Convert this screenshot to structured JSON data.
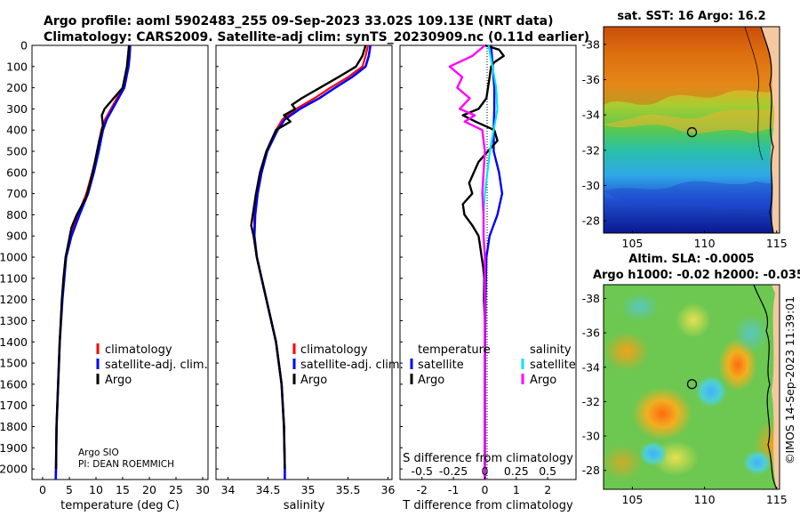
{
  "header": {
    "line1": "Argo profile: aoml 5902483_255 09-Sep-2023 33.02S 109.13E (NRT data)",
    "line2": "Climatology: CARS2009. Satellite-adj clim: synTS_20230909.nc (0.11d earlier)"
  },
  "colors": {
    "climatology": "#ff0000",
    "satellite": "#0000ff",
    "argo": "#000000",
    "sat_salinity": "#00e5ee",
    "argo_salinity": "#ff00ff"
  },
  "depth_axis": {
    "ylim": [
      0,
      2050
    ],
    "ticks": [
      "0",
      "100",
      "200",
      "300",
      "400",
      "500",
      "600",
      "700",
      "800",
      "900",
      "1000",
      "1100",
      "1200",
      "1300",
      "1400",
      "1500",
      "1600",
      "1700",
      "1800",
      "1900",
      "2000"
    ]
  },
  "chart_data": [
    {
      "type": "line",
      "xlabel": "temperature (deg C)",
      "xlim": [
        -2,
        31
      ],
      "xticks": [
        "0",
        "5",
        "10",
        "15",
        "20",
        "25",
        "30"
      ],
      "legend": [
        "climatology",
        "satellite-adj. clim.",
        "Argo"
      ],
      "note": [
        "Argo SIO",
        "PI: DEAN ROEMMICH"
      ],
      "series": [
        {
          "name": "climatology",
          "depth": [
            0,
            50,
            100,
            200,
            300,
            350,
            400,
            500,
            600,
            700,
            800,
            900,
            1000,
            1200,
            1400,
            1600,
            1800,
            2000,
            2050
          ],
          "values": [
            16.2,
            16.0,
            15.9,
            15.0,
            12.8,
            11.7,
            11.0,
            10.3,
            9.3,
            8.2,
            6.6,
            5.2,
            4.3,
            3.6,
            3.2,
            2.9,
            2.6,
            2.5,
            2.45
          ]
        },
        {
          "name": "satellite-adj. clim.",
          "depth": [
            0,
            50,
            100,
            200,
            300,
            350,
            400,
            500,
            600,
            700,
            800,
            900,
            1000,
            1200,
            1400,
            1600,
            1800,
            2000,
            2050
          ],
          "values": [
            16.4,
            16.3,
            16.1,
            15.3,
            13.1,
            12.0,
            11.3,
            10.5,
            9.6,
            8.5,
            6.9,
            5.4,
            4.4,
            3.7,
            3.2,
            2.9,
            2.6,
            2.5,
            2.45
          ]
        },
        {
          "name": "Argo",
          "depth": [
            0,
            50,
            100,
            200,
            300,
            330,
            380,
            450,
            550,
            650,
            720,
            800,
            860,
            950,
            1000,
            1100,
            1200,
            1400,
            1600,
            1800,
            2000
          ],
          "values": [
            16.2,
            16.0,
            15.8,
            15.0,
            11.6,
            11.1,
            11.3,
            10.6,
            9.8,
            8.9,
            8.1,
            6.4,
            5.4,
            4.7,
            4.3,
            3.9,
            3.6,
            3.2,
            2.9,
            2.6,
            2.5
          ]
        }
      ]
    },
    {
      "type": "line",
      "xlabel": "salinity",
      "xlim": [
        33.85,
        36.05
      ],
      "xticks": [
        "34",
        "34.5",
        "35",
        "35.5",
        "36"
      ],
      "legend": [
        "climatology",
        "satellite-adj. clim.",
        "Argo"
      ],
      "series": [
        {
          "name": "climatology",
          "depth": [
            0,
            50,
            100,
            150,
            200,
            250,
            300,
            350,
            400,
            500,
            600,
            700,
            800,
            900,
            1000,
            1200,
            1400,
            1600,
            1800,
            2000,
            2050
          ],
          "values": [
            35.75,
            35.72,
            35.68,
            35.5,
            35.28,
            35.08,
            34.85,
            34.68,
            34.6,
            34.48,
            34.41,
            34.36,
            34.33,
            34.33,
            34.36,
            34.48,
            34.6,
            34.67,
            34.7,
            34.71,
            34.71
          ]
        },
        {
          "name": "satellite-adj. clim.",
          "depth": [
            0,
            50,
            100,
            150,
            200,
            250,
            300,
            350,
            400,
            500,
            600,
            700,
            800,
            900,
            1000,
            1200,
            1400,
            1600,
            1800,
            2000,
            2050
          ],
          "values": [
            35.78,
            35.76,
            35.72,
            35.55,
            35.34,
            35.14,
            34.9,
            34.71,
            34.62,
            34.49,
            34.42,
            34.37,
            34.34,
            34.33,
            34.36,
            34.48,
            34.6,
            34.67,
            34.7,
            34.71,
            34.71
          ]
        },
        {
          "name": "Argo",
          "depth": [
            0,
            50,
            100,
            150,
            200,
            250,
            280,
            300,
            330,
            360,
            400,
            500,
            600,
            700,
            800,
            850,
            900,
            1000,
            1200,
            1400,
            1600,
            1800,
            2000
          ],
          "values": [
            35.72,
            35.68,
            35.6,
            35.38,
            35.15,
            34.92,
            34.8,
            34.84,
            34.7,
            34.78,
            34.6,
            34.48,
            34.4,
            34.35,
            34.31,
            34.29,
            34.32,
            34.36,
            34.48,
            34.6,
            34.67,
            34.7,
            34.71
          ]
        }
      ]
    },
    {
      "type": "line",
      "xlabel": "T difference from climatology",
      "xlabel_top": "S difference from climatology",
      "xlim": [
        -2.7,
        2.9
      ],
      "xticks": [
        "-2",
        "-1",
        "0",
        "1",
        "2"
      ],
      "xticks_top": [
        "-0.5",
        "-0.25",
        "0",
        "0.25",
        "0.5"
      ],
      "legend_groups": [
        "temperature",
        "salinity"
      ],
      "legend": [
        "satellite",
        "Argo",
        "satellite",
        "Argo"
      ],
      "series": [
        {
          "name": "temperature satellite",
          "depth": [
            0,
            100,
            200,
            300,
            400,
            500,
            600,
            700,
            800,
            900,
            1000,
            1200,
            1400,
            1600,
            1800,
            2000,
            2050
          ],
          "values": [
            0.2,
            0.25,
            0.3,
            0.3,
            0.28,
            0.28,
            0.45,
            0.55,
            0.4,
            0.15,
            0.05,
            0.02,
            0.01,
            0.0,
            0.0,
            0.0,
            0.0
          ]
        },
        {
          "name": "temperature Argo",
          "depth": [
            0,
            20,
            50,
            80,
            100,
            150,
            200,
            250,
            300,
            330,
            360,
            400,
            450,
            500,
            550,
            600,
            650,
            700,
            750,
            800,
            850,
            900,
            950,
            1000,
            1050,
            1100,
            1200,
            1300,
            1400,
            1500,
            1600,
            1700,
            1800,
            1900,
            2000,
            2050
          ],
          "values": [
            0.0,
            0.45,
            0.6,
            0.3,
            0.2,
            0.15,
            0.1,
            0.05,
            -0.2,
            -0.7,
            -0.3,
            0.3,
            0.4,
            0.1,
            -0.2,
            -0.35,
            -0.5,
            -0.4,
            -0.7,
            -0.65,
            -0.4,
            -0.2,
            -0.15,
            -0.1,
            -0.05,
            -0.02,
            -0.03,
            0.0,
            0.0,
            0.0,
            0.0,
            0.0,
            0.0,
            0.0,
            0.0,
            0.0
          ]
        },
        {
          "name": "salinity satellite",
          "depth": [
            0,
            100,
            200,
            300,
            400,
            500,
            600,
            700,
            800,
            900,
            1000,
            1200,
            1400,
            1600,
            1800,
            2000,
            2050
          ],
          "values": [
            0.03,
            0.06,
            0.09,
            0.1,
            0.07,
            0.04,
            0.02,
            0.0,
            -0.01,
            -0.01,
            0.0,
            0.0,
            0.0,
            0.0,
            0.0,
            0.0,
            0.0
          ]
        },
        {
          "name": "salinity Argo",
          "depth": [
            0,
            50,
            100,
            150,
            200,
            250,
            300,
            330,
            360,
            400,
            450,
            500,
            600,
            700,
            800,
            900,
            1000,
            1200,
            1400,
            1600,
            1800,
            2000,
            2050
          ],
          "values": [
            0.0,
            -0.1,
            -0.28,
            -0.18,
            -0.22,
            -0.12,
            -0.2,
            -0.08,
            -0.16,
            -0.02,
            -0.01,
            0.0,
            -0.01,
            -0.02,
            -0.01,
            -0.01,
            0.0,
            0.0,
            0.0,
            0.0,
            0.0,
            0.0,
            0.0
          ]
        }
      ]
    },
    {
      "type": "heatmap",
      "title": "sat. SST: 16 Argo: 16.2",
      "xticks": [
        "105",
        "110",
        "115"
      ],
      "yticks": [
        "-28",
        "-30",
        "-32",
        "-34",
        "-36",
        "-38"
      ],
      "marker": {
        "lon": 109.13,
        "lat": -33.02
      }
    },
    {
      "type": "heatmap",
      "title": "Altim. SLA: -0.0005",
      "subtitle": "Argo h1000: -0.02 h2000: -0.035",
      "xticks": [
        "105",
        "110",
        "115"
      ],
      "yticks": [
        "-28",
        "-30",
        "-32",
        "-34",
        "-36",
        "-38"
      ],
      "marker": {
        "lon": 109.13,
        "lat": -33.02
      }
    }
  ],
  "credit": "©IMOS 14-Sep-2023 11:39:01"
}
